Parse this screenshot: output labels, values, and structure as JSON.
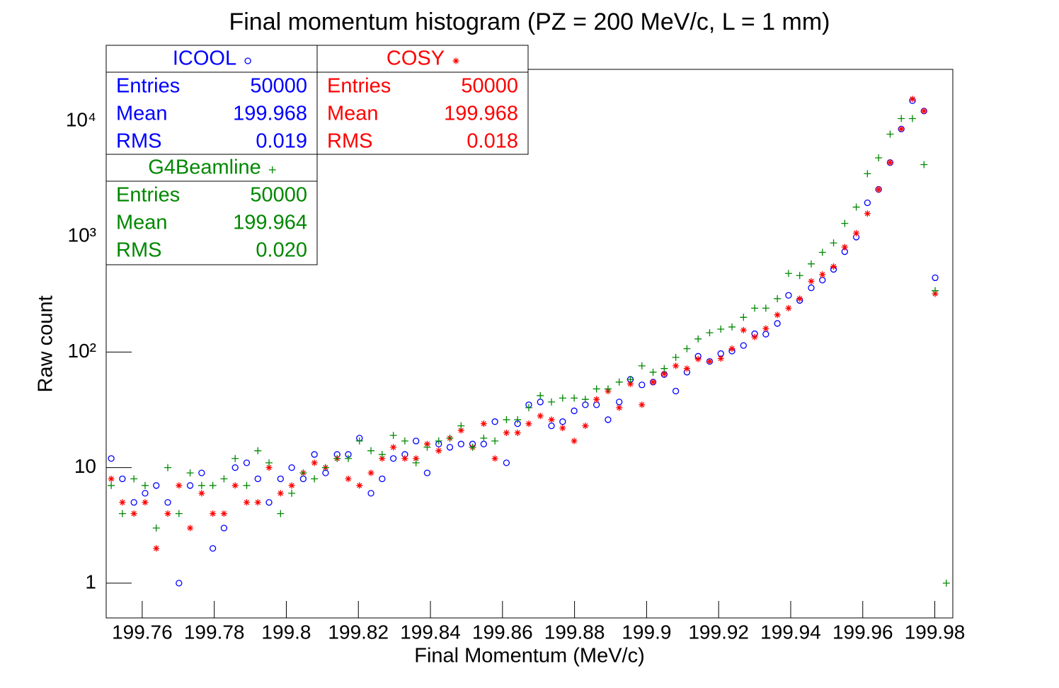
{
  "chart_data": {
    "type": "scatter",
    "title": "Final momentum histogram (PZ = 200 MeV/c, L = 1 mm)",
    "xlabel": "Final Momentum (MeV/c)",
    "ylabel": "Raw count",
    "log_y": true,
    "xlim": [
      199.75,
      199.985
    ],
    "ylim": [
      0.5,
      28000
    ],
    "xticks": [
      199.76,
      199.78,
      199.8,
      199.82,
      199.84,
      199.86,
      199.88,
      199.9,
      199.92,
      199.94,
      199.96,
      199.98
    ],
    "yticks": [
      1,
      10,
      {
        "value": 100,
        "label": "10²"
      },
      {
        "value": 1000,
        "label": "10³"
      },
      {
        "value": 10000,
        "label": "10⁴"
      }
    ],
    "stat_names": [
      "Entries",
      "Mean",
      "RMS"
    ],
    "x": [
      199.7514,
      199.7545,
      199.7577,
      199.7608,
      199.7639,
      199.7671,
      199.7702,
      199.7733,
      199.7765,
      199.7796,
      199.7827,
      199.7858,
      199.789,
      199.7921,
      199.7952,
      199.7984,
      199.8015,
      199.8047,
      199.8078,
      199.8109,
      199.8141,
      199.8172,
      199.8203,
      199.8235,
      199.8266,
      199.8297,
      199.8329,
      199.836,
      199.8391,
      199.8423,
      199.8454,
      199.8485,
      199.8517,
      199.8548,
      199.8579,
      199.8611,
      199.8642,
      199.8673,
      199.8705,
      199.8736,
      199.8767,
      199.8799,
      199.883,
      199.8861,
      199.8893,
      199.8924,
      199.8955,
      199.8987,
      199.9018,
      199.9049,
      199.9081,
      199.9112,
      199.9143,
      199.9175,
      199.9206,
      199.9237,
      199.9269,
      199.93,
      199.9331,
      199.9363,
      199.9394,
      199.9425,
      199.9457,
      199.9488,
      199.9519,
      199.955,
      199.9582,
      199.9613,
      199.9644,
      199.9676,
      199.9707,
      199.9738,
      199.977,
      199.9801,
      199.9832
    ],
    "series": [
      {
        "name": "ICOOL",
        "color": "#0000ff",
        "marker": "circle",
        "stats": [
          50000,
          199.968,
          0.019
        ],
        "values": [
          12,
          8,
          5,
          6,
          7,
          5,
          1,
          7,
          9,
          2,
          3,
          10,
          11,
          8,
          5,
          8,
          10,
          8,
          13,
          9,
          13,
          13,
          18,
          6,
          8,
          12,
          13,
          17,
          9,
          16,
          15,
          16,
          16,
          16,
          25,
          11,
          24,
          35,
          37,
          23,
          25,
          31,
          35,
          35,
          26,
          37,
          58,
          52,
          55,
          64,
          46,
          67,
          92,
          83,
          97,
          102,
          114,
          144,
          143,
          177,
          310,
          280,
          360,
          420,
          520,
          740,
          990,
          1960,
          2560,
          4370,
          8530,
          15000,
          12200,
          440,
          null
        ]
      },
      {
        "name": "COSY",
        "color": "#ff0000",
        "marker": "star",
        "stats": [
          50000,
          199.968,
          0.018
        ],
        "values": [
          8,
          5,
          4,
          5,
          2,
          4,
          7,
          3,
          6,
          4,
          4,
          7,
          5,
          5,
          10,
          6,
          7,
          9,
          11,
          10,
          12,
          8,
          7,
          9,
          12,
          15,
          12,
          12,
          16,
          14,
          18,
          21,
          15,
          24,
          12,
          20,
          20,
          24,
          28,
          26,
          22,
          17,
          23,
          39,
          46,
          33,
          53,
          35,
          55,
          65,
          76,
          72,
          87,
          83,
          88,
          107,
          155,
          135,
          160,
          210,
          240,
          290,
          410,
          470,
          550,
          810,
          1070,
          1580,
          2560,
          4370,
          8530,
          15500,
          12200,
          320,
          null
        ]
      },
      {
        "name": "G4Beamline",
        "color": "#008800",
        "marker": "plus",
        "stats": [
          50000,
          199.964,
          0.02
        ],
        "stat_labels": [
          "50000",
          "199.964",
          "0.020"
        ],
        "values": [
          7,
          4,
          8,
          7,
          3,
          10,
          4,
          9,
          7,
          7,
          8,
          12,
          7,
          14,
          11,
          4,
          6,
          9,
          8,
          10,
          12,
          12,
          17,
          14,
          13,
          19,
          17,
          11,
          15,
          17,
          18,
          23,
          15,
          18,
          17,
          26,
          26,
          33,
          42,
          37,
          40,
          40,
          39,
          48,
          48,
          55,
          58,
          76,
          67,
          72,
          90,
          107,
          130,
          147,
          158,
          165,
          200,
          240,
          240,
          290,
          480,
          460,
          580,
          730,
          880,
          1300,
          1800,
          3500,
          4800,
          7700,
          10500,
          10500,
          4200,
          340,
          1
        ]
      }
    ]
  }
}
